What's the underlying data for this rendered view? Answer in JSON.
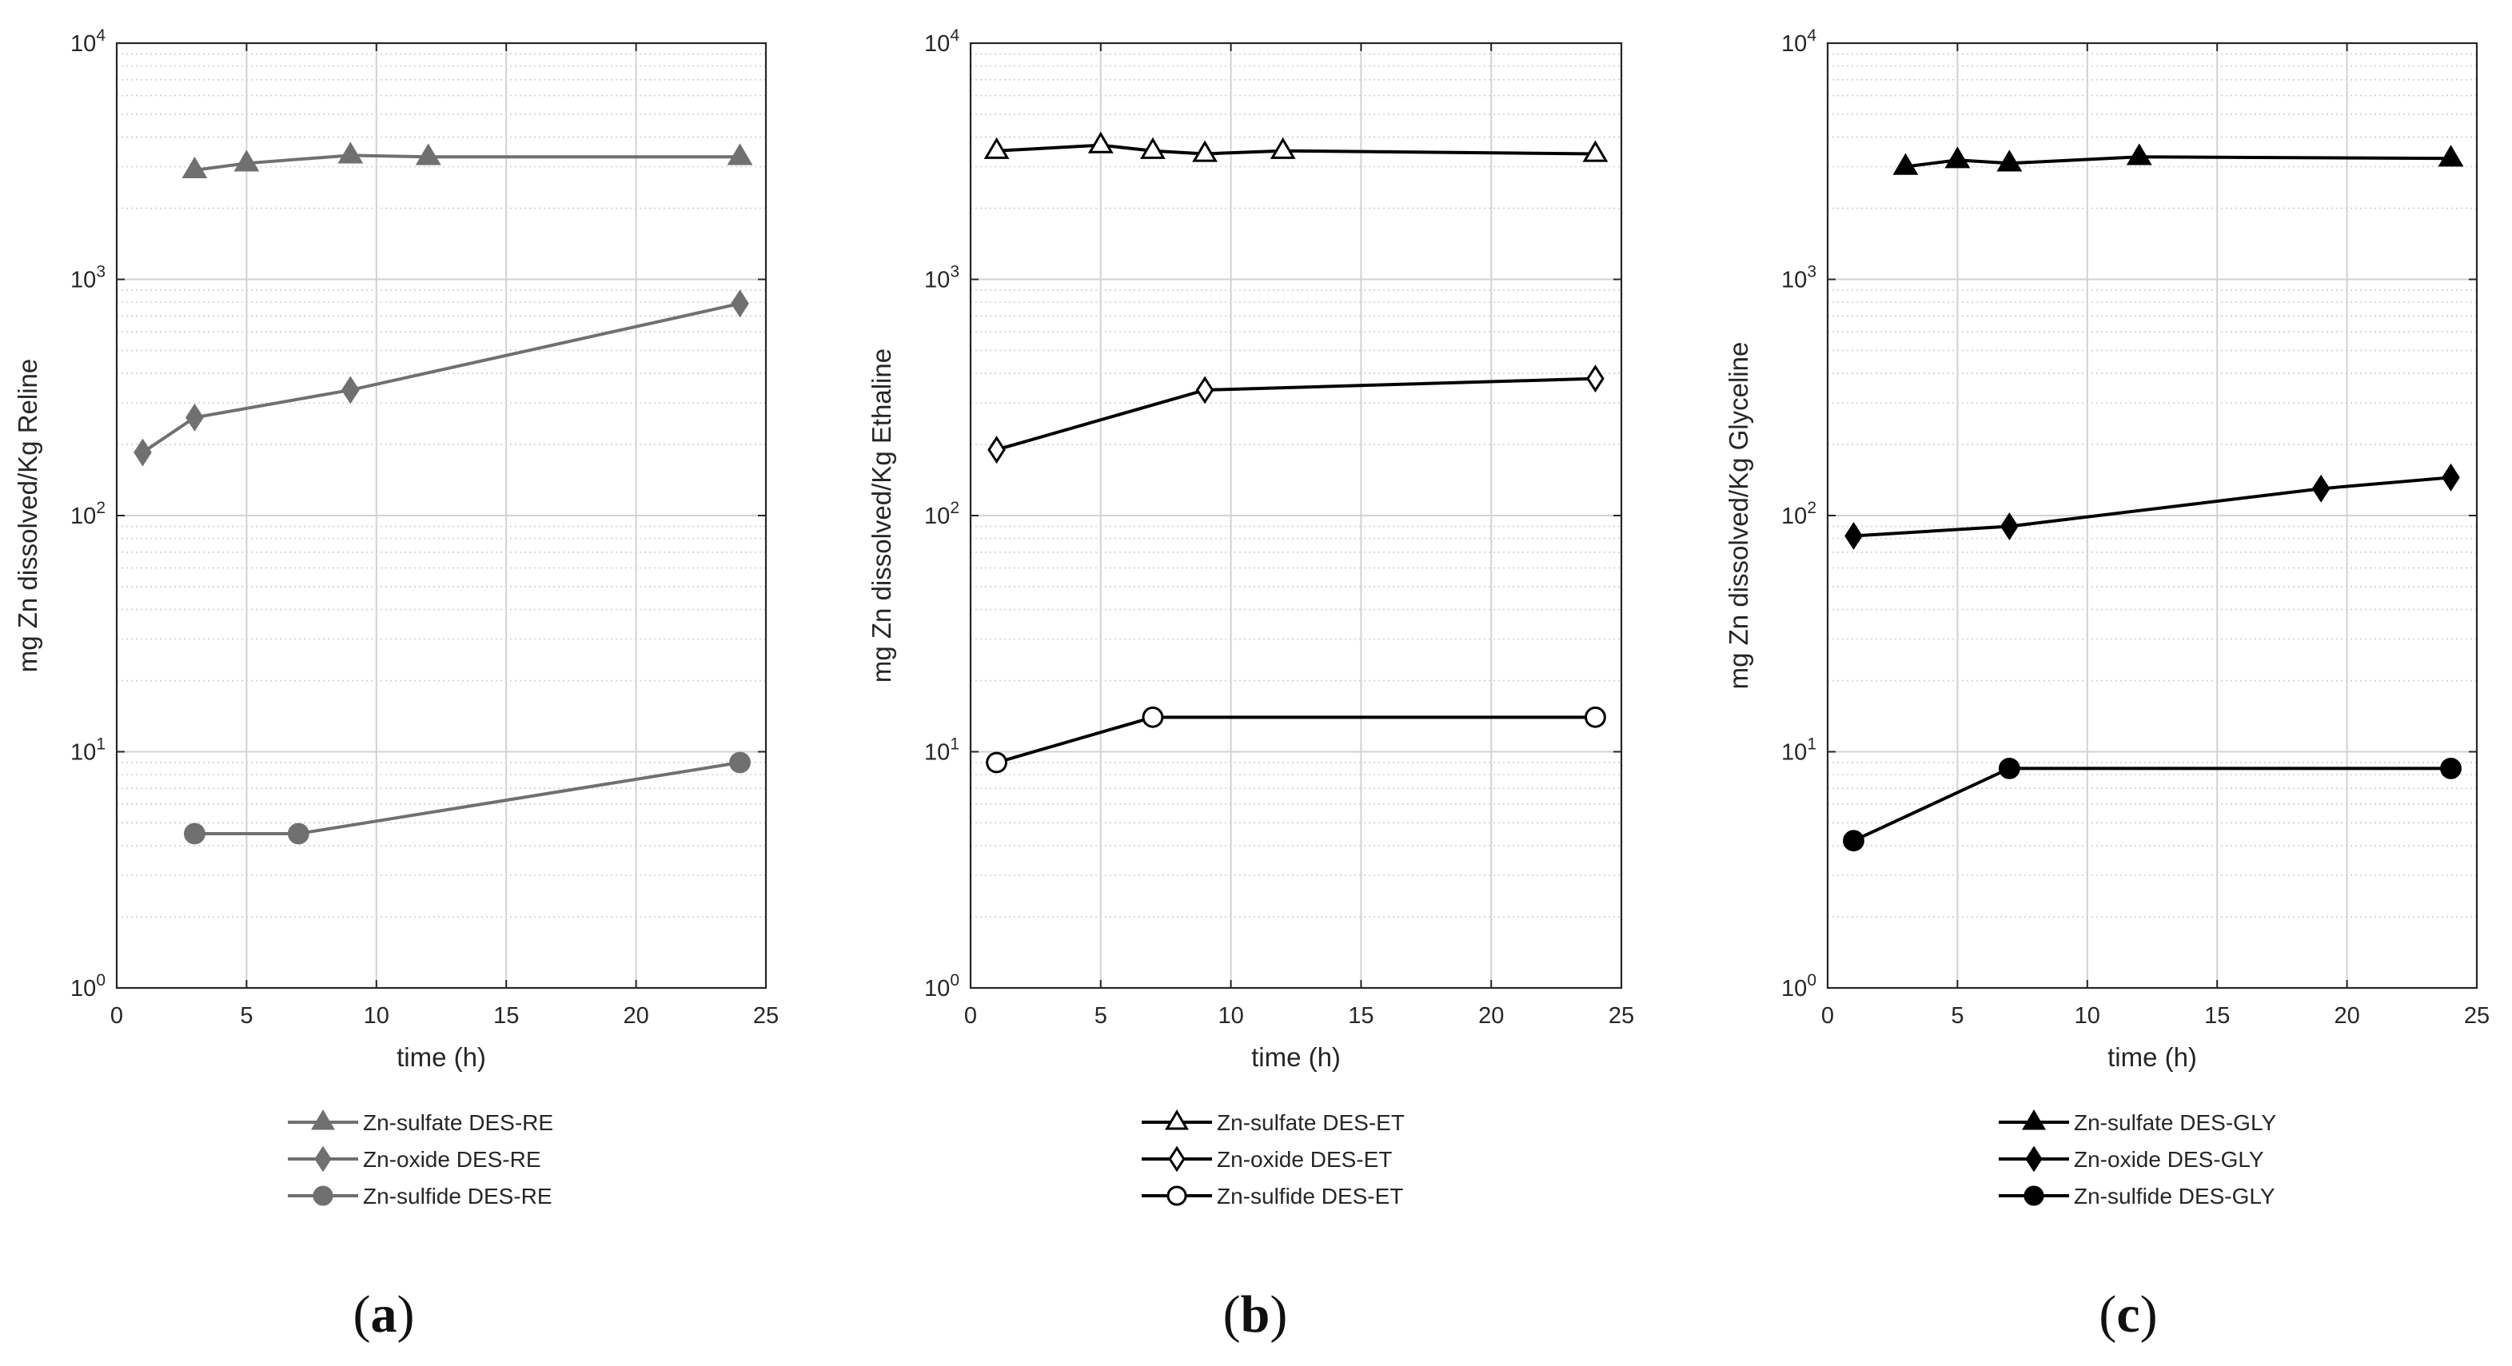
{
  "chart_data": [
    {
      "type": "line",
      "yscale": "log",
      "panel_label": "a",
      "title": "",
      "xlabel": "time (h)",
      "ylabel": "mg Zn dissolved/Kg Reline",
      "xlim": [
        0,
        25
      ],
      "ylim": [
        1,
        10000
      ],
      "xticks": [
        0,
        5,
        10,
        15,
        20,
        25
      ],
      "yticks": [
        1,
        10,
        100,
        1000,
        10000
      ],
      "grid": true,
      "legend_position": "below",
      "color": "#707070",
      "marker_fill": "#707070",
      "series": [
        {
          "name": "Zn-sulfate DES-RE",
          "marker": "triangle",
          "x": [
            3,
            5,
            9,
            12,
            24
          ],
          "y": [
            2900,
            3100,
            3350,
            3300,
            3300
          ]
        },
        {
          "name": "Zn-oxide DES-RE",
          "marker": "diamond",
          "x": [
            1,
            3,
            9,
            24
          ],
          "y": [
            185,
            260,
            340,
            790
          ]
        },
        {
          "name": "Zn-sulfide DES-RE",
          "marker": "circle",
          "x": [
            3,
            7,
            24
          ],
          "y": [
            4.5,
            4.5,
            9
          ]
        }
      ]
    },
    {
      "type": "line",
      "yscale": "log",
      "panel_label": "b",
      "title": "",
      "xlabel": "time (h)",
      "ylabel": "mg Zn dissolved/Kg Ethaline",
      "xlim": [
        0,
        25
      ],
      "ylim": [
        1,
        10000
      ],
      "xticks": [
        0,
        5,
        10,
        15,
        20,
        25
      ],
      "yticks": [
        1,
        10,
        100,
        1000,
        10000
      ],
      "grid": true,
      "legend_position": "below",
      "color": "#000000",
      "marker_fill": "#ffffff",
      "series": [
        {
          "name": "Zn-sulfate DES-ET",
          "marker": "triangle",
          "x": [
            1,
            5,
            7,
            9,
            12,
            24
          ],
          "y": [
            3500,
            3700,
            3500,
            3400,
            3500,
            3400
          ]
        },
        {
          "name": "Zn-oxide DES-ET",
          "marker": "diamond",
          "x": [
            1,
            9,
            24
          ],
          "y": [
            190,
            340,
            380
          ]
        },
        {
          "name": "Zn-sulfide DES-ET",
          "marker": "circle",
          "x": [
            1,
            7,
            24
          ],
          "y": [
            9,
            14,
            14
          ]
        }
      ]
    },
    {
      "type": "line",
      "yscale": "log",
      "panel_label": "c",
      "title": "",
      "xlabel": "time (h)",
      "ylabel": "mg Zn dissolved/Kg Glyceline",
      "xlim": [
        0,
        25
      ],
      "ylim": [
        1,
        10000
      ],
      "xticks": [
        0,
        5,
        10,
        15,
        20,
        25
      ],
      "yticks": [
        1,
        10,
        100,
        1000,
        10000
      ],
      "grid": true,
      "legend_position": "below",
      "color": "#000000",
      "marker_fill": "#000000",
      "series": [
        {
          "name": "Zn-sulfate DES-GLY",
          "marker": "triangle",
          "x": [
            3,
            5,
            7,
            12,
            24
          ],
          "y": [
            3000,
            3200,
            3100,
            3300,
            3250
          ]
        },
        {
          "name": "Zn-oxide DES-GLY",
          "marker": "diamond",
          "x": [
            1,
            7,
            19,
            24
          ],
          "y": [
            82,
            90,
            130,
            145
          ]
        },
        {
          "name": "Zn-sulfide DES-GLY",
          "marker": "circle",
          "x": [
            1,
            7,
            24
          ],
          "y": [
            4.2,
            8.5,
            8.5
          ]
        }
      ]
    }
  ]
}
